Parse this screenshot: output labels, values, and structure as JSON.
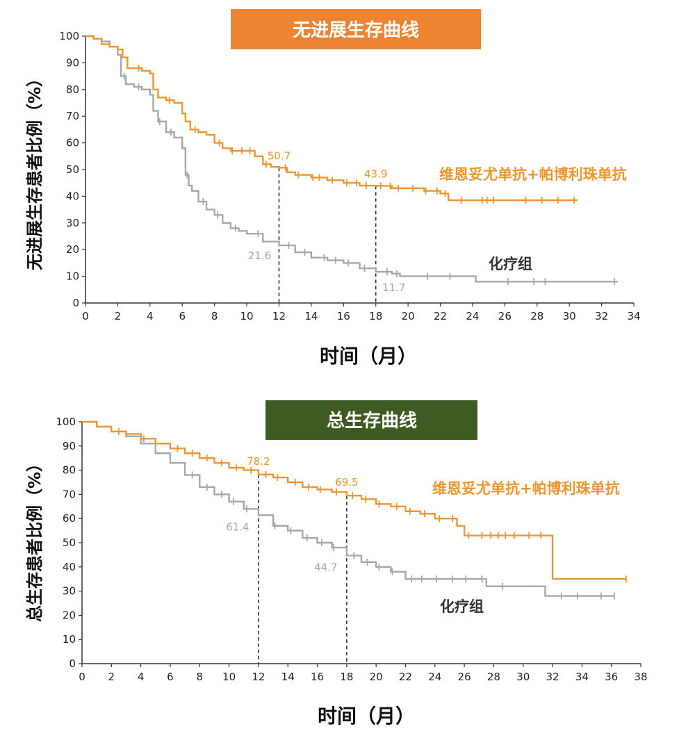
{
  "colors": {
    "treatment": "#F0962E",
    "chemo": "#A8A8AC",
    "pfs_banner": "#EC8433",
    "os_banner": "#3E5B22",
    "axis": "#333333",
    "dashed": "#333333",
    "chemo_label": "#333333"
  },
  "chart_data": [
    {
      "type": "line",
      "title": "无进展生存曲线",
      "xlabel": "时间（月）",
      "ylabel": "无进展生存患者比例（%）",
      "xlim": [
        0,
        34
      ],
      "ylim": [
        0,
        100
      ],
      "xticks": [
        0,
        2,
        4,
        6,
        8,
        10,
        12,
        14,
        16,
        18,
        20,
        22,
        24,
        26,
        28,
        30,
        32,
        34
      ],
      "yticks": [
        0,
        10,
        20,
        30,
        40,
        50,
        60,
        70,
        80,
        90,
        100
      ],
      "grid": false,
      "series": [
        {
          "name": "维恩妥尤单抗+帕博利珠单抗",
          "color_key": "treatment",
          "x": [
            0,
            0.5,
            1,
            1.5,
            2,
            2.3,
            2.6,
            3,
            3.5,
            4,
            4.2,
            4.5,
            5,
            5.5,
            6,
            6.2,
            6.5,
            7,
            7.5,
            8,
            8.5,
            9,
            9.5,
            10,
            10.5,
            11,
            11.5,
            12,
            12.5,
            13,
            14,
            15,
            16,
            17,
            18,
            19,
            20,
            21,
            22,
            22.5,
            23,
            24,
            26,
            28,
            30,
            30.5
          ],
          "y": [
            100,
            99,
            97,
            96,
            95,
            92,
            88,
            88,
            87,
            86,
            80,
            77,
            76,
            75,
            71,
            68,
            65,
            64,
            63,
            60,
            58,
            57,
            57,
            57,
            55,
            52,
            51,
            50.7,
            49,
            48,
            47,
            46,
            45,
            44,
            43.9,
            43,
            43,
            42,
            41,
            38.5,
            38.5,
            38.5,
            38.5,
            38.5,
            38.5,
            38.5
          ],
          "censors_x": [
            3.3,
            5.2,
            6.8,
            8.3,
            9.1,
            9.7,
            10.2,
            11.2,
            12.4,
            13.2,
            14.1,
            14.5,
            15.3,
            16.2,
            16.8,
            17.4,
            18.3,
            18.9,
            19.4,
            20.3,
            21.1,
            21.8,
            22.3,
            23.3,
            24.6,
            24.9,
            25.3,
            27.3,
            28.3,
            29.3,
            30.3
          ],
          "point_labels": [
            {
              "x": 12,
              "text": "50.7"
            },
            {
              "x": 18,
              "text": "43.9"
            }
          ]
        },
        {
          "name": "化疗组",
          "color_key": "chemo",
          "x": [
            0,
            0.5,
            1,
            1.5,
            2,
            2.2,
            2.5,
            3,
            3.5,
            4,
            4.2,
            4.5,
            5,
            5.5,
            6,
            6.2,
            6.4,
            6.6,
            7,
            7.5,
            8,
            8.5,
            9,
            9.5,
            10,
            11,
            12,
            13,
            14,
            15,
            16,
            17,
            18,
            19,
            19.5,
            20,
            22,
            24,
            24.2,
            26,
            28,
            30,
            33
          ],
          "y": [
            100,
            99,
            98,
            96,
            93,
            85,
            82,
            81,
            80,
            78,
            72,
            68,
            64,
            62,
            58,
            48,
            44,
            42,
            38,
            35,
            33,
            30,
            28,
            27,
            26,
            23,
            21.6,
            19,
            17,
            16,
            15,
            13,
            11.7,
            11,
            10,
            10,
            10,
            10,
            8,
            8,
            8,
            8,
            8
          ],
          "censors_x": [
            2.4,
            3.3,
            4.6,
            5.3,
            6.3,
            7.3,
            8.2,
            9.3,
            10.7,
            12.6,
            13.6,
            14.8,
            15.5,
            16.3,
            17.3,
            18.7,
            19.3,
            21.2,
            22.6,
            26.2,
            27.8,
            28.5,
            32.8
          ],
          "point_labels": [
            {
              "x": 12,
              "text": "21.6"
            },
            {
              "x": 18,
              "text": "11.7"
            }
          ]
        }
      ],
      "reference_x": [
        12,
        18
      ]
    },
    {
      "type": "line",
      "title": "总生存曲线",
      "xlabel": "时间（月）",
      "ylabel": "总生存患者比例（%）",
      "xlim": [
        0,
        38
      ],
      "ylim": [
        0,
        100
      ],
      "xticks": [
        0,
        2,
        4,
        6,
        8,
        10,
        12,
        14,
        16,
        18,
        20,
        22,
        24,
        26,
        28,
        30,
        32,
        34,
        36,
        38
      ],
      "yticks": [
        0,
        10,
        20,
        30,
        40,
        50,
        60,
        70,
        80,
        90,
        100
      ],
      "grid": false,
      "series": [
        {
          "name": "维恩妥尤单抗+帕博利珠单抗",
          "color_key": "treatment",
          "x": [
            0,
            1,
            2,
            3,
            4,
            5,
            6,
            7,
            8,
            9,
            10,
            11,
            12,
            13,
            14,
            15,
            16,
            17,
            18,
            19,
            20,
            21,
            22,
            23,
            24,
            25,
            25.5,
            26,
            27,
            28,
            29,
            30,
            31,
            31.5,
            32,
            34,
            36,
            37
          ],
          "y": [
            100,
            98,
            96,
            95,
            93,
            91,
            89,
            87,
            85,
            83,
            81,
            80,
            78.2,
            77,
            75,
            73,
            72,
            71,
            69.5,
            68,
            66,
            65,
            63,
            62,
            60,
            60,
            57,
            53,
            53,
            53,
            53,
            53,
            53,
            53,
            35,
            35,
            35,
            35
          ],
          "censors_x": [
            2.5,
            4.2,
            6.5,
            7.5,
            8.5,
            9.5,
            10.5,
            11.5,
            12.5,
            13.3,
            14.5,
            15.4,
            16.2,
            17.3,
            18.4,
            19.3,
            20.2,
            21.4,
            22.3,
            23.3,
            24.3,
            25.2,
            26.3,
            27.2,
            27.8,
            28.3,
            28.8,
            29.4,
            30.4,
            31.2,
            37
          ]
        },
        {
          "name": "化疗组",
          "color_key": "chemo",
          "x": [
            0,
            1,
            2,
            3,
            4,
            5,
            6,
            7,
            8,
            9,
            10,
            11,
            12,
            13,
            14,
            15,
            16,
            17,
            18,
            19,
            20,
            21,
            22,
            23,
            24,
            25,
            26,
            27,
            27.5,
            28,
            29,
            30,
            31,
            31.5,
            32,
            34,
            36,
            36.2
          ],
          "y": [
            100,
            98,
            96,
            94,
            91,
            87,
            83,
            78,
            73,
            70,
            67,
            64,
            61.4,
            57,
            55,
            52,
            50,
            48,
            44.7,
            42,
            40,
            38,
            35,
            35,
            35,
            35,
            35,
            35,
            32,
            32,
            32,
            32,
            32,
            28,
            28,
            28,
            28,
            28
          ],
          "censors_x": [
            7.5,
            8.5,
            9.5,
            10.3,
            11.2,
            13.1,
            14.2,
            15.3,
            16.3,
            17.1,
            18.5,
            19.4,
            20.2,
            21.1,
            22.4,
            23.1,
            24.1,
            25.2,
            26.1,
            27.2,
            28.6,
            32.6,
            33.7,
            35.3,
            36.2
          ]
        }
      ],
      "reference_x": [
        12,
        18
      ],
      "point_labels": [
        {
          "series": 0,
          "x": 12,
          "text": "78.2"
        },
        {
          "series": 0,
          "x": 18,
          "text": "69.5"
        },
        {
          "series": 1,
          "x": 12,
          "text": "61.4"
        },
        {
          "series": 1,
          "x": 18,
          "text": "44.7"
        }
      ]
    }
  ]
}
